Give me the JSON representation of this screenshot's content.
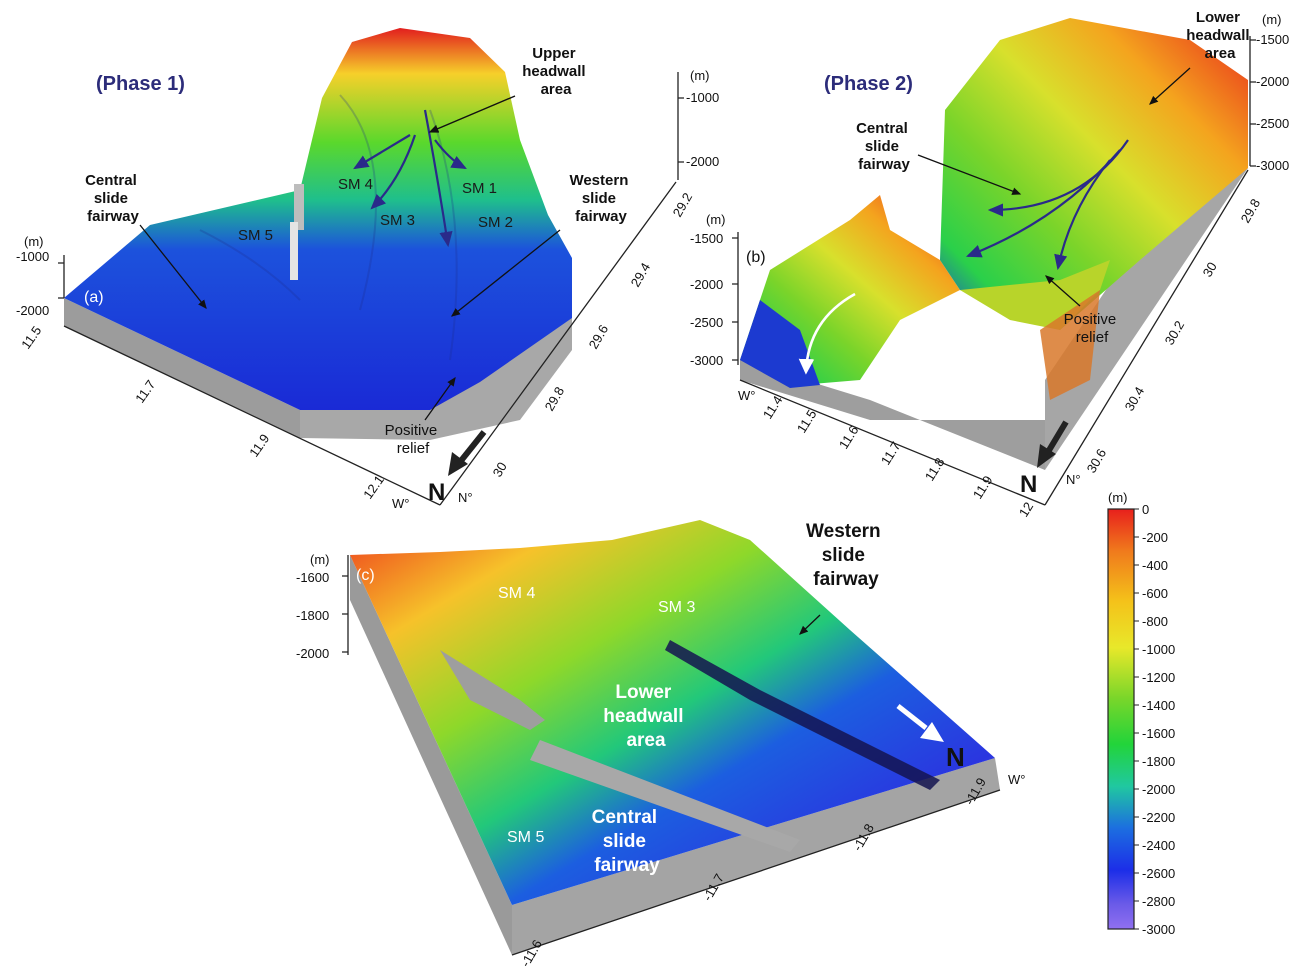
{
  "panel_a": {
    "letter": "(a)",
    "phase": "(Phase 1)",
    "upper_headwall": [
      "Upper",
      "headwall",
      "area"
    ],
    "central_fairway": [
      "Central",
      "slide",
      "fairway"
    ],
    "western_fairway": [
      "Western",
      "slide",
      "fairway"
    ],
    "positive_relief": [
      "Positive",
      "relief"
    ],
    "sm_labels": [
      "SM 4",
      "SM 1",
      "SM 3",
      "SM 2",
      "SM 5"
    ],
    "depth_unit_left": "(m)",
    "depth_ticks_left": [
      "-1000",
      "-2000"
    ],
    "depth_unit_right": "(m)",
    "depth_ticks_right": [
      "-1000",
      "-2000"
    ],
    "lon_ticks": [
      "11.5",
      "11.7",
      "11.9",
      "12.1"
    ],
    "lon_unit": "W°",
    "lat_ticks": [
      "29.2",
      "29.4",
      "29.6",
      "29.8",
      "30"
    ],
    "lat_unit": "N°",
    "north": "N"
  },
  "panel_b": {
    "letter": "(b)",
    "phase": "(Phase 2)",
    "lower_headwall": [
      "Lower",
      "headwall",
      "area"
    ],
    "central_fairway": [
      "Central",
      "slide",
      "fairway"
    ],
    "positive_relief": [
      "Positive",
      "relief"
    ],
    "depth_unit_left": "(m)",
    "depth_ticks_left": [
      "-1500",
      "-2000",
      "-2500",
      "-3000"
    ],
    "depth_unit_right": "(m)",
    "depth_ticks_right": [
      "-1500",
      "-2000",
      "-2500",
      "-3000"
    ],
    "lon_ticks": [
      "11.4",
      "11.5",
      "11.6",
      "11.7",
      "11.8",
      "11.9",
      "12"
    ],
    "lon_unit": "W°",
    "lat_ticks": [
      "29.8",
      "30",
      "30.2",
      "30.4",
      "30.6"
    ],
    "lat_unit": "N°",
    "north": "N"
  },
  "panel_c": {
    "letter": "(c)",
    "western_fairway": [
      "Western",
      "slide",
      "fairway"
    ],
    "lower_headwall": [
      "Lower",
      "headwall",
      "area"
    ],
    "central_fairway": [
      "Central",
      "slide",
      "fairway"
    ],
    "sm_labels": [
      "SM 4",
      "SM 3",
      "SM 5"
    ],
    "depth_unit": "(m)",
    "depth_ticks": [
      "-1600",
      "-1800",
      "-2000"
    ],
    "lon_ticks": [
      "-11.6",
      "-11.7",
      "-11.8",
      "-11.9"
    ],
    "lon_unit": "W°",
    "north": "N"
  },
  "colorbar": {
    "unit": "(m)",
    "ticks": [
      "0",
      "-200",
      "-400",
      "-600",
      "-800",
      "-1000",
      "-1200",
      "-1400",
      "-1600",
      "-1800",
      "-2000",
      "-2200",
      "-2400",
      "-2600",
      "-2800",
      "-3000"
    ],
    "colors": [
      "#e8201c",
      "#f07a1c",
      "#f4c21a",
      "#e8e82a",
      "#7ad62a",
      "#22d43a",
      "#20c8a0",
      "#1c6ee0",
      "#1c2ee8",
      "#6a5ae8",
      "#9070f0"
    ]
  }
}
